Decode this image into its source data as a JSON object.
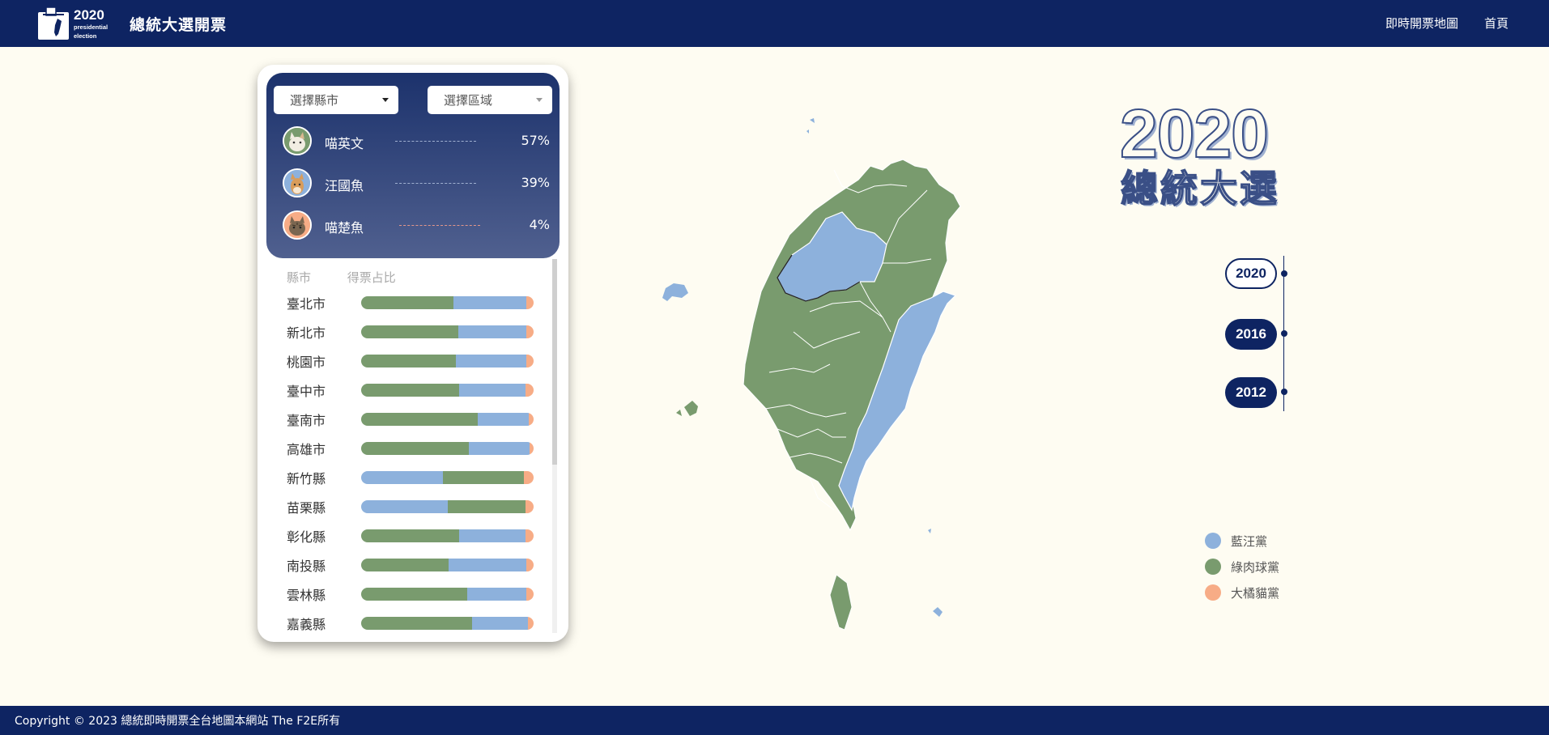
{
  "header": {
    "logo_year": "2020",
    "logo_sub": "presidential",
    "logo_sub2": "election",
    "title": "總統大選開票",
    "nav": [
      "即時開票地圖",
      "首頁"
    ]
  },
  "panel": {
    "city_select": "選擇縣市",
    "area_select": "選擇區域",
    "candidates": [
      {
        "name": "喵英文",
        "pct": "57%",
        "party_color": "#799b6e"
      },
      {
        "name": "汪國魚",
        "pct": "39%",
        "party_color": "#8db1dc"
      },
      {
        "name": "喵楚魚",
        "pct": "4%",
        "party_color": "#f7ac86"
      }
    ],
    "table_headers": {
      "city": "縣市",
      "ratio": "得票占比"
    },
    "rows": [
      {
        "name": "臺北市",
        "shares": [
          {
            "color": "green",
            "value": 0.535
          },
          {
            "color": "blue",
            "value": 0.425
          },
          {
            "color": "orange",
            "value": 0.04
          }
        ]
      },
      {
        "name": "新北市",
        "shares": [
          {
            "color": "green",
            "value": 0.565
          },
          {
            "color": "blue",
            "value": 0.395
          },
          {
            "color": "orange",
            "value": 0.04
          }
        ]
      },
      {
        "name": "桃園市",
        "shares": [
          {
            "color": "green",
            "value": 0.55
          },
          {
            "color": "blue",
            "value": 0.41
          },
          {
            "color": "orange",
            "value": 0.04
          }
        ]
      },
      {
        "name": "臺中市",
        "shares": [
          {
            "color": "green",
            "value": 0.57
          },
          {
            "color": "blue",
            "value": 0.385
          },
          {
            "color": "orange",
            "value": 0.045
          }
        ]
      },
      {
        "name": "臺南市",
        "shares": [
          {
            "color": "green",
            "value": 0.675
          },
          {
            "color": "blue",
            "value": 0.295
          },
          {
            "color": "orange",
            "value": 0.03
          }
        ]
      },
      {
        "name": "高雄市",
        "shares": [
          {
            "color": "green",
            "value": 0.625
          },
          {
            "color": "blue",
            "value": 0.35
          },
          {
            "color": "orange",
            "value": 0.025
          }
        ]
      },
      {
        "name": "新竹縣",
        "shares": [
          {
            "color": "blue",
            "value": 0.475
          },
          {
            "color": "green",
            "value": 0.47
          },
          {
            "color": "orange",
            "value": 0.055
          }
        ]
      },
      {
        "name": "苗栗縣",
        "shares": [
          {
            "color": "blue",
            "value": 0.5
          },
          {
            "color": "green",
            "value": 0.455
          },
          {
            "color": "orange",
            "value": 0.045
          }
        ]
      },
      {
        "name": "彰化縣",
        "shares": [
          {
            "color": "green",
            "value": 0.57
          },
          {
            "color": "blue",
            "value": 0.385
          },
          {
            "color": "orange",
            "value": 0.045
          }
        ]
      },
      {
        "name": "南投縣",
        "shares": [
          {
            "color": "green",
            "value": 0.505
          },
          {
            "color": "blue",
            "value": 0.455
          },
          {
            "color": "orange",
            "value": 0.04
          }
        ]
      },
      {
        "name": "雲林縣",
        "shares": [
          {
            "color": "green",
            "value": 0.615
          },
          {
            "color": "blue",
            "value": 0.345
          },
          {
            "color": "orange",
            "value": 0.04
          }
        ]
      },
      {
        "name": "嘉義縣",
        "shares": [
          {
            "color": "green",
            "value": 0.645
          },
          {
            "color": "blue",
            "value": 0.32
          },
          {
            "color": "orange",
            "value": 0.035
          }
        ]
      }
    ]
  },
  "colors": {
    "green": "#799b6e",
    "blue": "#8db1dc",
    "orange": "#f7ac86",
    "navy": "#0e2462"
  },
  "title_block": {
    "year": "2020",
    "subtitle": "總統大選"
  },
  "timeline": [
    "2020",
    "2016",
    "2012"
  ],
  "legend": [
    {
      "label": "藍汪黨",
      "color": "#8db1dc"
    },
    {
      "label": "綠肉球黨",
      "color": "#799b6e"
    },
    {
      "label": "大橘貓黨",
      "color": "#f7ac86"
    }
  ],
  "footer": {
    "text": "Copyright © 2023 總統即時開票全台地圖本網站 The F2E所有"
  }
}
